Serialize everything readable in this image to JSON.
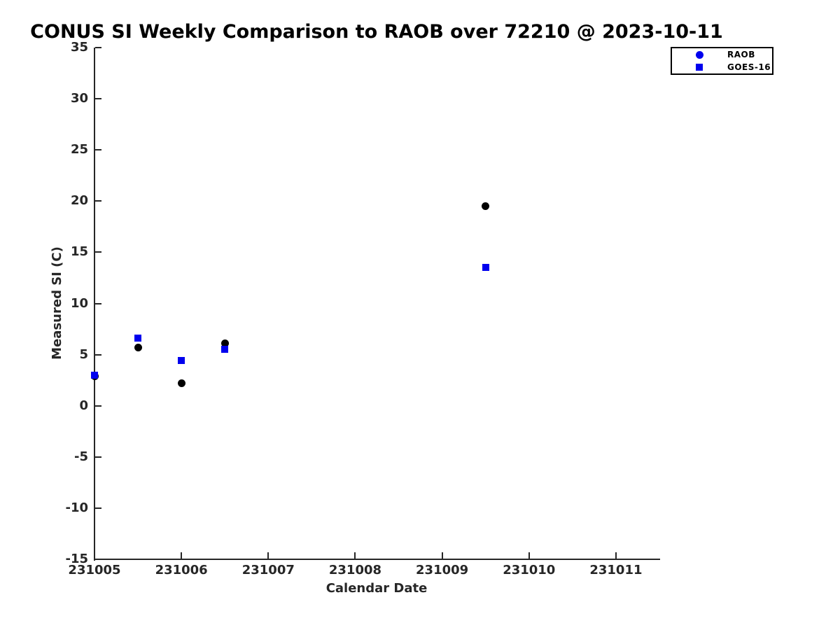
{
  "chart_data": {
    "type": "scatter",
    "title": "CONUS SI Weekly Comparison to RAOB over 72210 @ 2023-10-11",
    "xlabel": "Calendar Date",
    "ylabel": "Measured SI (C)",
    "xlim": [
      231005,
      231011.5
    ],
    "ylim": [
      -15,
      35
    ],
    "xticks": [
      231005,
      231006,
      231007,
      231008,
      231009,
      231010,
      231011
    ],
    "yticks": [
      35,
      30,
      25,
      20,
      15,
      10,
      5,
      0,
      -5,
      -10,
      -15
    ],
    "grid": false,
    "axis_color": "#262626",
    "background": "#ffffff",
    "legend": {
      "position": "top-right",
      "border_color": "#000000",
      "background": "#ffffff",
      "entries": [
        "RAOB",
        "GOES-16"
      ]
    },
    "x": [
      231005,
      231005.5,
      231006,
      231006.5,
      231009.5
    ],
    "series": [
      {
        "name": "RAOB",
        "marker": "circle",
        "color": "#000000",
        "legend_marker_color": "#0000ee",
        "values": [
          2.9,
          5.7,
          2.2,
          6.1,
          19.5
        ]
      },
      {
        "name": "GOES-16",
        "marker": "square",
        "color": "#0000ee",
        "legend_marker_color": "#0000ee",
        "values": [
          3.0,
          6.6,
          4.4,
          5.5,
          13.5
        ]
      }
    ]
  }
}
